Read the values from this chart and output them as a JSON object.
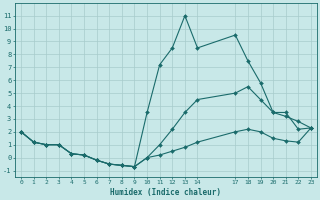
{
  "xlabel": "Humidex (Indice chaleur)",
  "bg_color": "#c8e8e8",
  "grid_color": "#a8cccc",
  "line_color": "#1a6b6b",
  "lines": [
    {
      "x": [
        0,
        1,
        2,
        3,
        4,
        5,
        6,
        7,
        8,
        9,
        10,
        11,
        12,
        13,
        14,
        17,
        18,
        19,
        20,
        21,
        22,
        23
      ],
      "y": [
        2.0,
        1.2,
        1.0,
        1.0,
        0.3,
        0.2,
        -0.2,
        -0.5,
        -0.6,
        -0.7,
        3.5,
        7.2,
        8.5,
        11.0,
        8.5,
        9.5,
        7.5,
        5.8,
        3.5,
        3.5,
        2.2,
        2.3
      ]
    },
    {
      "x": [
        0,
        1,
        2,
        3,
        4,
        5,
        6,
        7,
        8,
        9,
        10,
        11,
        12,
        13,
        14,
        17,
        18,
        19,
        20,
        21,
        22,
        23
      ],
      "y": [
        2.0,
        1.2,
        1.0,
        1.0,
        0.3,
        0.2,
        -0.2,
        -0.5,
        -0.6,
        -0.7,
        0.0,
        1.0,
        2.2,
        3.5,
        4.5,
        5.0,
        5.5,
        4.5,
        3.5,
        3.2,
        2.8,
        2.3
      ]
    },
    {
      "x": [
        0,
        1,
        2,
        3,
        4,
        5,
        6,
        7,
        8,
        9,
        10,
        11,
        12,
        13,
        14,
        17,
        18,
        19,
        20,
        21,
        22,
        23
      ],
      "y": [
        2.0,
        1.2,
        1.0,
        1.0,
        0.3,
        0.2,
        -0.2,
        -0.5,
        -0.6,
        -0.7,
        0.0,
        0.2,
        0.5,
        0.8,
        1.2,
        2.0,
        2.2,
        2.0,
        1.5,
        1.3,
        1.2,
        2.3
      ]
    }
  ],
  "xticks": [
    0,
    1,
    2,
    3,
    4,
    5,
    6,
    7,
    8,
    9,
    10,
    11,
    12,
    13,
    14,
    17,
    18,
    19,
    20,
    21,
    22,
    23
  ],
  "yticks": [
    -1,
    0,
    1,
    2,
    3,
    4,
    5,
    6,
    7,
    8,
    9,
    10,
    11
  ],
  "xlim": [
    -0.5,
    23.5
  ],
  "ylim": [
    -1.5,
    12.0
  ]
}
